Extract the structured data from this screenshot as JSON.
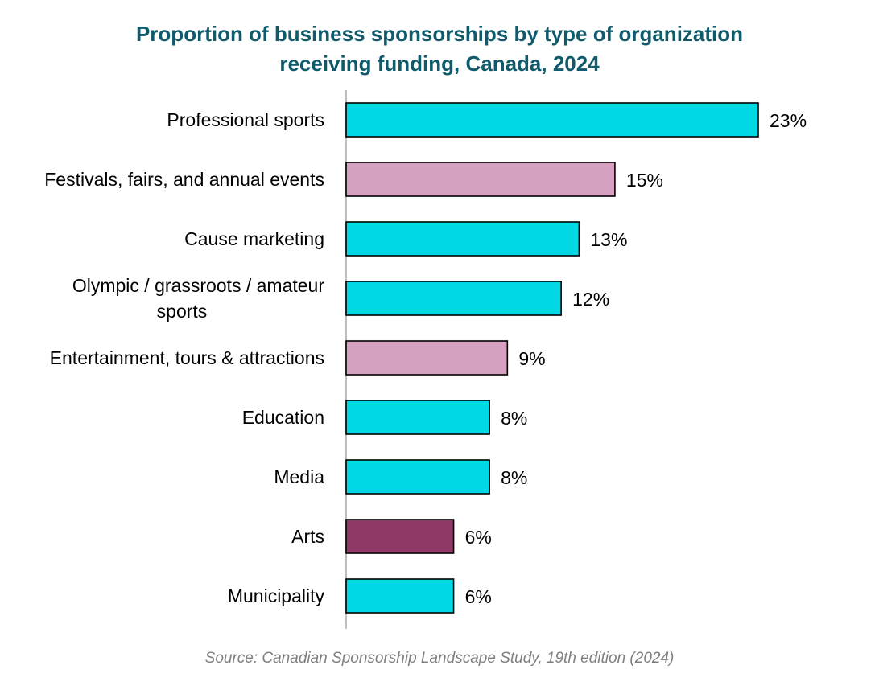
{
  "chart_data": {
    "type": "bar",
    "orientation": "horizontal",
    "title_lines": [
      "Proportion of business sponsorships by type of organization",
      "receiving funding, Canada, 2024"
    ],
    "categories": [
      [
        "Professional sports"
      ],
      [
        "Festivals, fairs, and annual events"
      ],
      [
        "Cause marketing"
      ],
      [
        "Olympic / grassroots / amateur",
        "sports"
      ],
      [
        "Entertainment, tours & attractions"
      ],
      [
        "Education"
      ],
      [
        "Media"
      ],
      [
        "Arts"
      ],
      [
        "Municipality"
      ]
    ],
    "values": [
      23,
      15,
      13,
      12,
      9,
      8,
      8,
      6,
      6
    ],
    "value_labels": [
      "23%",
      "15%",
      "13%",
      "12%",
      "9%",
      "8%",
      "8%",
      "6%",
      "6%"
    ],
    "bar_colors": [
      "#00d9e3",
      "#d6a0c1",
      "#00d9e3",
      "#00d9e3",
      "#d6a0c1",
      "#00d9e3",
      "#00d9e3",
      "#8e3a67",
      "#00d9e3"
    ],
    "source": "Source: Canadian Sponsorship Landscape Study, 19th edition (2024)",
    "xlim": [
      0,
      24
    ],
    "grid": false,
    "legend": "none"
  }
}
